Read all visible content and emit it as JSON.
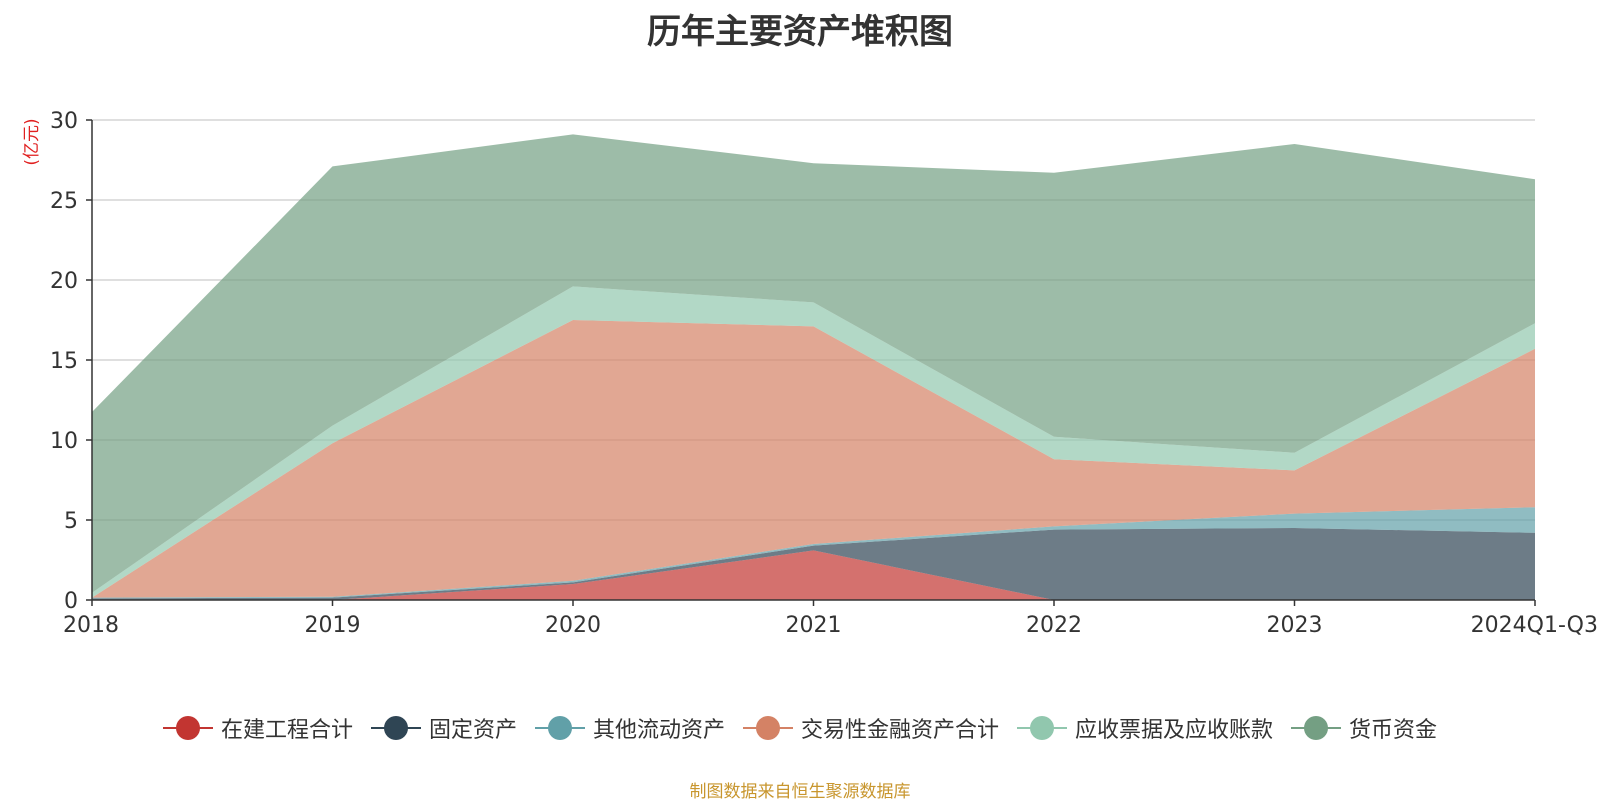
{
  "chart_data": {
    "type": "area",
    "stacked": true,
    "title": "历年主要资产堆积图",
    "y_unit": "(亿元)",
    "categories": [
      "2018",
      "2019",
      "2020",
      "2021",
      "2022",
      "2023",
      "2024Q1-Q3"
    ],
    "ylim": [
      0,
      30
    ],
    "yticks": [
      0,
      5,
      10,
      15,
      20,
      25,
      30
    ],
    "grid": true,
    "legend_position": "bottom",
    "series": [
      {
        "name": "在建工程合计",
        "color": "#c23531",
        "values": [
          0.0,
          0.0,
          1.0,
          3.1,
          0.0,
          0.0,
          0.0
        ]
      },
      {
        "name": "固定资产",
        "color": "#2f4554",
        "values": [
          0.1,
          0.15,
          0.1,
          0.3,
          4.4,
          4.5,
          4.2
        ]
      },
      {
        "name": "其他流动资产",
        "color": "#61a0a8",
        "values": [
          0.05,
          0.05,
          0.1,
          0.1,
          0.2,
          0.9,
          1.6
        ]
      },
      {
        "name": "交易性金融资产合计",
        "color": "#d48265",
        "values": [
          0.0,
          9.6,
          16.3,
          13.6,
          4.2,
          2.7,
          9.9
        ]
      },
      {
        "name": "应收票据及应收账款",
        "color": "#91c7ae",
        "values": [
          0.3,
          1.1,
          2.1,
          1.5,
          1.4,
          1.1,
          1.6
        ]
      },
      {
        "name": "货币资金",
        "color": "#749f83",
        "values": [
          11.3,
          16.2,
          9.5,
          8.7,
          16.5,
          19.3,
          9.0
        ]
      }
    ]
  },
  "footer": {
    "source": "制图数据来自恒生聚源数据库"
  }
}
